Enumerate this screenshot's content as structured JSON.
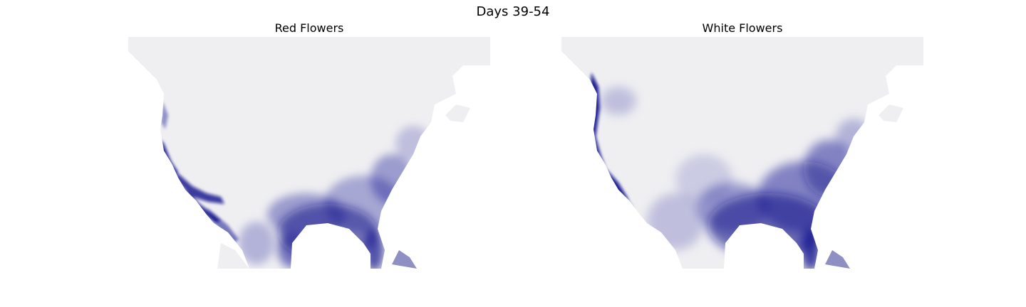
{
  "figure": {
    "suptitle": "Days 39-54"
  },
  "panels": [
    {
      "title": "Red Flowers"
    },
    {
      "title": "White Flowers"
    }
  ],
  "colors": {
    "background_land": "#efeff2",
    "high_density": "#0c0c8c",
    "figure_bg": "#ffffff"
  }
}
